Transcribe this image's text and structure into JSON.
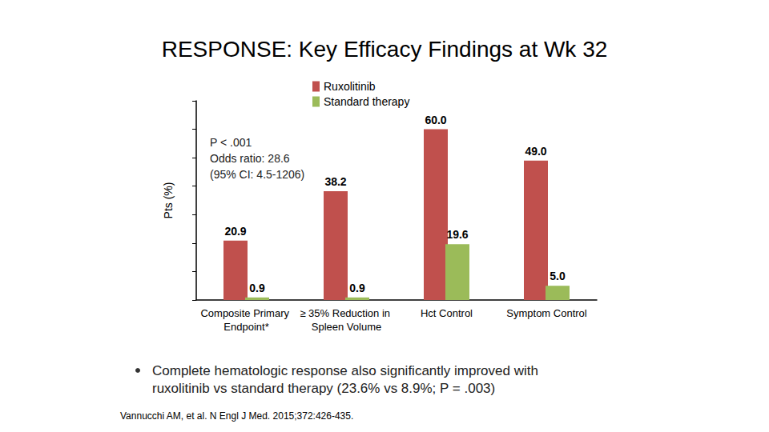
{
  "chart_data": {
    "type": "bar",
    "title": "RESPONSE: Key Efficacy Findings at Wk 32",
    "y_label": "Pts (%)",
    "categories": [
      "Composite Primary Endpoint*",
      "≥ 35% Reduction in Spleen Volume",
      "Hct Control",
      "Symptom Control"
    ],
    "series": [
      {
        "name": "Ruxolitinib",
        "color": "#C0504D",
        "values": [
          20.9,
          38.2,
          60.0,
          49.0
        ],
        "value_labels": [
          "20.9",
          "38.2",
          "60.0",
          "49.0"
        ]
      },
      {
        "name": "Standard therapy",
        "color": "#9BBB59",
        "values": [
          0.9,
          0.9,
          19.6,
          5.0
        ],
        "value_labels": [
          "0.9",
          "0.9",
          "19.6",
          "5.0"
        ]
      }
    ],
    "ylim": [
      0,
      70
    ],
    "yticks": [
      0,
      10,
      20,
      30,
      40,
      50,
      60,
      70
    ],
    "grid": false,
    "legend": "top",
    "data_labels": true,
    "tick_labels": "x",
    "annotations": [
      "P < .001",
      "Odds ratio: 28.6",
      "(95% CI: 4.5-1206)"
    ],
    "note_lines": [
      [
        {
          "text": "Complete hematologic response also significantly improved with"
        }
      ],
      [
        {
          "text": "ruxolitinib vs standard therapy ("
        },
        {
          "text": "23.6%",
          "color": "#C0504D"
        },
        {
          "text": " vs "
        },
        {
          "text": "8.9%",
          "color": "#9BBB59"
        },
        {
          "text": "; P = .003)"
        }
      ]
    ],
    "source": "Vannucchi AM, et al. N Engl J Med. 2015;372:426-435."
  }
}
